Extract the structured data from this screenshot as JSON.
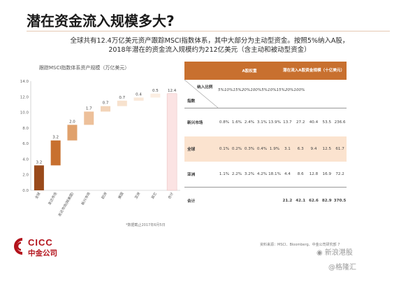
{
  "title": "潜在资金流入规模多大?",
  "subtitle_line1": "全球共有12.4万亿美元资产跟踪MSCI指数体系，其中大部分为主动型资金。按照5%纳入A股，",
  "subtitle_line2": "2018年潜在的资金流入规模约为212亿美元（含主动和被动型资金）",
  "chart_data": {
    "type": "bar",
    "title": "跟踪MSCI指数体系资产规模（万亿美元）",
    "categories": [
      "全球",
      "发达市场",
      "发达市场(除美国)",
      "新兴市场",
      "欧洲",
      "美国",
      "亚洲",
      "其它",
      "合计"
    ],
    "values": [
      3.2,
      3.2,
      2.0,
      1.7,
      0.7,
      0.7,
      0.4,
      0.5,
      12.4
    ],
    "labels": [
      "3.2",
      "3.2",
      "2.0",
      "1.7",
      "0.7",
      "0.7",
      "0.4",
      "0.5",
      "12.4"
    ],
    "waterfall": true,
    "ylim": [
      0,
      14
    ],
    "yticks": [
      "0.0",
      "2.0",
      "4.0",
      "6.0",
      "8.0",
      "10.0",
      "12.0",
      "14.0"
    ],
    "source_note": "*数据截止2017年6月5日"
  },
  "table": {
    "header_group1": "A股权重",
    "header_group2": "潜在流入A股资金规模（十亿美元）",
    "corner_top": "纳入比例",
    "corner_bottom": "指数",
    "pcts": [
      "5%",
      "10%",
      "15%",
      "20%",
      "100%",
      "5%",
      "10%",
      "15%",
      "20%",
      "100%"
    ],
    "rows": [
      {
        "label": "新兴市场",
        "values": [
          "0.8%",
          "1.6%",
          "2.4%",
          "3.1%",
          "13.9%",
          "13.7",
          "27.2",
          "40.4",
          "53.5",
          "236.6"
        ],
        "shaded": false
      },
      {
        "label": "全球",
        "values": [
          "0.1%",
          "0.2%",
          "0.3%",
          "0.4%",
          "1.9%",
          "3.1",
          "6.3",
          "9.4",
          "12.5",
          "61.7"
        ],
        "shaded": true
      },
      {
        "label": "亚洲",
        "values": [
          "1.1%",
          "2.2%",
          "3.2%",
          "4.2%",
          "18.1%",
          "4.4",
          "8.6",
          "12.8",
          "16.9",
          "72.2"
        ],
        "shaded": false
      },
      {
        "label": "合计",
        "values": [
          "",
          "",
          "",
          "",
          "",
          "21.2",
          "42.1",
          "62.6",
          "82.9",
          "370.5"
        ],
        "shaded": false
      }
    ],
    "source": "资料来源：MSCI、Bloomberg、中金公司研究部"
  },
  "page_number": "7",
  "logo": {
    "latin": "CICC",
    "chinese": "中金公司"
  },
  "watermark1": "新浪港股",
  "watermark2": "@格隆汇",
  "colors": {
    "accent": "#c8702f",
    "dark_bar": "#9a4a1b",
    "shade": "#fbe3cf",
    "logo": "#b3121b"
  }
}
